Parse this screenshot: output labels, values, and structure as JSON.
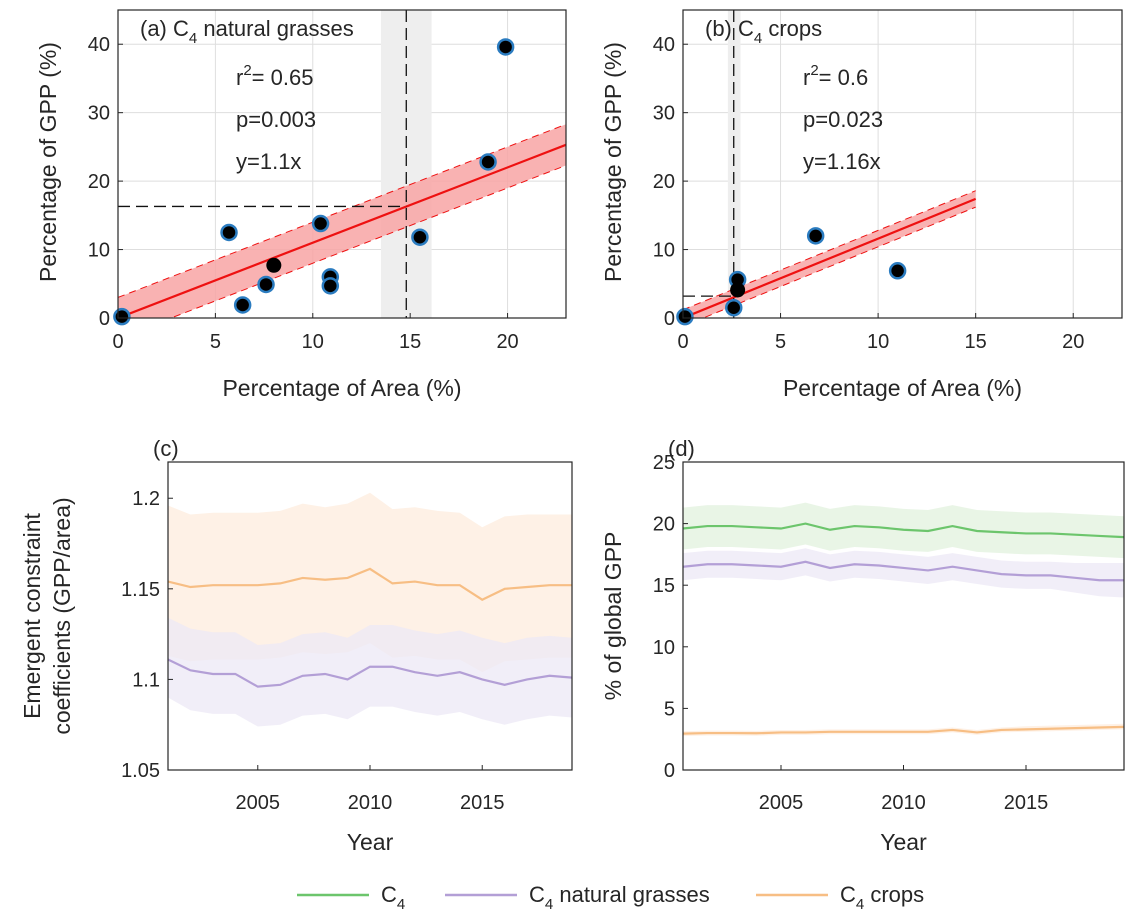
{
  "colors": {
    "fit_line": "#ee1111",
    "fit_band": "#f8a5a5",
    "marker_edge": "#2b7cc0",
    "marker_fill": "#000000",
    "grid": "#dedede",
    "axis": "#262626",
    "c4": "#6cc56c",
    "c4_band": "#e1f2de",
    "c4_grasses": "#b39fd6",
    "c4_grasses_band": "#ece8f5",
    "c4_crops": "#f7be84",
    "c4_crops_band": "#fdecdd",
    "vband": "#eeeeee"
  },
  "legend": {
    "placement": "bottom-center",
    "entries": [
      {
        "key": "c4",
        "main": "C",
        "sub": "4",
        "rest": ""
      },
      {
        "key": "c4_grasses",
        "main": "C",
        "sub": "4",
        "rest": " natural grasses"
      },
      {
        "key": "c4_crops",
        "main": "C",
        "sub": "4",
        "rest": " crops"
      }
    ]
  },
  "chart_data": [
    {
      "id": "a",
      "type": "scatter",
      "title_prefix": "(a) C",
      "title_sub": "4",
      "title_suffix": " natural grasses",
      "xlabel": "Percentage of Area (%)",
      "ylabel": "Percentage of GPP (%)",
      "xlim": [
        0,
        23
      ],
      "ylim": [
        0,
        45
      ],
      "xticks": [
        0,
        5,
        10,
        15,
        20
      ],
      "yticks": [
        0,
        10,
        20,
        30,
        40
      ],
      "grid": true,
      "annotation": {
        "r2_main": "r",
        "r2_sup": "2",
        "r2_value": "= 0.65",
        "p": "p=0.003",
        "eq": "y=1.1x"
      },
      "points": [
        {
          "x": 0.2,
          "y": 0.2,
          "edge": true
        },
        {
          "x": 5.7,
          "y": 12.5,
          "edge": true
        },
        {
          "x": 6.4,
          "y": 1.9,
          "edge": true
        },
        {
          "x": 7.6,
          "y": 4.9,
          "edge": true
        },
        {
          "x": 8.0,
          "y": 7.7,
          "edge": false
        },
        {
          "x": 10.4,
          "y": 13.8,
          "edge": true
        },
        {
          "x": 10.9,
          "y": 6.0,
          "edge": true
        },
        {
          "x": 10.9,
          "y": 4.7,
          "edge": true
        },
        {
          "x": 15.5,
          "y": 11.8,
          "edge": true
        },
        {
          "x": 19.0,
          "y": 22.8,
          "edge": true
        },
        {
          "x": 19.9,
          "y": 39.6,
          "edge": true
        }
      ],
      "fit": {
        "slope": 1.1,
        "x_range": [
          0,
          23
        ],
        "band_halfwidth": 3.0
      },
      "vline": {
        "x": 14.8,
        "band": [
          13.5,
          16.1
        ]
      },
      "hline": {
        "y": 16.3
      }
    },
    {
      "id": "b",
      "type": "scatter",
      "title_prefix": "(b) C",
      "title_sub": "4",
      "title_suffix": " crops",
      "xlabel": "Percentage of Area (%)",
      "ylabel": "Percentage of GPP (%)",
      "xlim": [
        0,
        22.5
      ],
      "ylim": [
        0,
        45
      ],
      "xticks": [
        0,
        5,
        10,
        15,
        20
      ],
      "yticks": [
        0,
        10,
        20,
        30,
        40
      ],
      "grid": true,
      "annotation": {
        "r2_main": "r",
        "r2_sup": "2",
        "r2_value": "= 0.6",
        "p": "p=0.023",
        "eq": "y=1.16x"
      },
      "points": [
        {
          "x": 0.1,
          "y": 0.2,
          "edge": true
        },
        {
          "x": 2.6,
          "y": 1.5,
          "edge": true
        },
        {
          "x": 2.8,
          "y": 5.6,
          "edge": true
        },
        {
          "x": 2.8,
          "y": 4.1,
          "edge": false
        },
        {
          "x": 6.8,
          "y": 12.0,
          "edge": true
        },
        {
          "x": 11.0,
          "y": 6.9,
          "edge": true
        }
      ],
      "fit": {
        "slope": 1.16,
        "x_range": [
          0,
          15
        ],
        "band_halfwidth": 1.2
      },
      "vline": {
        "x": 2.6,
        "band": [
          2.3,
          2.95
        ]
      },
      "hline": {
        "y": 3.2
      }
    },
    {
      "id": "c",
      "type": "line",
      "title": "(c)",
      "xlabel": "Year",
      "ylabel_lines": [
        "Emergent constraint",
        "coefficients (GPP/area)"
      ],
      "xlim": [
        2001,
        2019
      ],
      "ylim": [
        1.05,
        1.22
      ],
      "xticks": [
        2005,
        2010,
        2015
      ],
      "yticks": [
        1.05,
        1.1,
        1.15,
        1.2
      ],
      "ytick_labels": [
        "1.05",
        "1.1",
        "1.15",
        "1.2"
      ],
      "grid": false,
      "x": [
        2001,
        2002,
        2003,
        2004,
        2005,
        2006,
        2007,
        2008,
        2009,
        2010,
        2011,
        2012,
        2013,
        2014,
        2015,
        2016,
        2017,
        2018,
        2019
      ],
      "series": [
        {
          "key": "c4_crops",
          "values": [
            1.154,
            1.151,
            1.152,
            1.152,
            1.152,
            1.153,
            1.156,
            1.155,
            1.156,
            1.161,
            1.153,
            1.154,
            1.152,
            1.152,
            1.144,
            1.15,
            1.151,
            1.152,
            1.152
          ],
          "upper": [
            1.196,
            1.191,
            1.192,
            1.192,
            1.192,
            1.193,
            1.197,
            1.195,
            1.197,
            1.203,
            1.194,
            1.195,
            1.193,
            1.192,
            1.184,
            1.19,
            1.191,
            1.191,
            1.191
          ],
          "lower": [
            1.113,
            1.11,
            1.111,
            1.111,
            1.111,
            1.112,
            1.115,
            1.114,
            1.115,
            1.12,
            1.112,
            1.113,
            1.111,
            1.111,
            1.104,
            1.11,
            1.111,
            1.112,
            1.112
          ]
        },
        {
          "key": "c4_grasses",
          "values": [
            1.111,
            1.105,
            1.103,
            1.103,
            1.096,
            1.097,
            1.102,
            1.103,
            1.1,
            1.107,
            1.107,
            1.104,
            1.102,
            1.104,
            1.1,
            1.097,
            1.1,
            1.102,
            1.101
          ],
          "upper": [
            1.134,
            1.128,
            1.126,
            1.126,
            1.119,
            1.12,
            1.125,
            1.126,
            1.123,
            1.13,
            1.13,
            1.127,
            1.125,
            1.127,
            1.123,
            1.12,
            1.123,
            1.124,
            1.123
          ],
          "lower": [
            1.09,
            1.083,
            1.081,
            1.081,
            1.074,
            1.075,
            1.08,
            1.081,
            1.078,
            1.085,
            1.085,
            1.082,
            1.08,
            1.082,
            1.078,
            1.075,
            1.078,
            1.08,
            1.079
          ]
        }
      ]
    },
    {
      "id": "d",
      "type": "line",
      "title": "(d)",
      "xlabel": "Year",
      "ylabel": "% of global GPP",
      "xlim": [
        2001,
        2019
      ],
      "ylim": [
        0,
        25
      ],
      "xticks": [
        2005,
        2010,
        2015
      ],
      "yticks": [
        0,
        5,
        10,
        15,
        20,
        25
      ],
      "ytick_labels": [
        "0",
        "5",
        "10",
        "15",
        "20",
        "25"
      ],
      "grid": false,
      "x": [
        2001,
        2002,
        2003,
        2004,
        2005,
        2006,
        2007,
        2008,
        2009,
        2010,
        2011,
        2012,
        2013,
        2014,
        2015,
        2016,
        2017,
        2018,
        2019
      ],
      "series": [
        {
          "key": "c4",
          "values": [
            19.6,
            19.8,
            19.8,
            19.7,
            19.6,
            20.0,
            19.5,
            19.8,
            19.7,
            19.5,
            19.4,
            19.8,
            19.4,
            19.3,
            19.2,
            19.2,
            19.1,
            19.0,
            18.9
          ],
          "upper": [
            21.3,
            21.5,
            21.5,
            21.4,
            21.3,
            21.7,
            21.2,
            21.5,
            21.4,
            21.2,
            21.1,
            21.5,
            21.1,
            21.0,
            20.9,
            20.9,
            20.8,
            20.7,
            20.6
          ],
          "lower": [
            17.9,
            18.1,
            18.1,
            18.0,
            17.9,
            18.3,
            17.8,
            18.1,
            18.0,
            17.8,
            17.7,
            18.1,
            17.7,
            17.6,
            17.5,
            17.5,
            17.4,
            17.3,
            17.2
          ]
        },
        {
          "key": "c4_grasses",
          "values": [
            16.5,
            16.7,
            16.7,
            16.6,
            16.5,
            16.9,
            16.4,
            16.7,
            16.6,
            16.4,
            16.2,
            16.5,
            16.2,
            15.9,
            15.8,
            15.8,
            15.6,
            15.4,
            15.4
          ],
          "upper": [
            17.6,
            17.8,
            17.8,
            17.7,
            17.6,
            18.0,
            17.5,
            17.8,
            17.7,
            17.5,
            17.3,
            17.6,
            17.3,
            17.0,
            16.9,
            16.9,
            16.8,
            16.8,
            16.8
          ],
          "lower": [
            15.4,
            15.6,
            15.6,
            15.5,
            15.4,
            15.8,
            15.3,
            15.6,
            15.5,
            15.3,
            15.1,
            15.4,
            15.1,
            14.8,
            14.7,
            14.7,
            14.4,
            14.1,
            14.0
          ]
        },
        {
          "key": "c4_crops",
          "values": [
            2.95,
            3.0,
            3.0,
            2.98,
            3.05,
            3.05,
            3.1,
            3.1,
            3.1,
            3.1,
            3.1,
            3.25,
            3.05,
            3.25,
            3.3,
            3.35,
            3.4,
            3.45,
            3.5
          ],
          "upper": [
            3.15,
            3.2,
            3.2,
            3.18,
            3.25,
            3.25,
            3.3,
            3.3,
            3.3,
            3.3,
            3.3,
            3.45,
            3.25,
            3.45,
            3.55,
            3.6,
            3.65,
            3.7,
            3.75
          ],
          "lower": [
            2.75,
            2.8,
            2.8,
            2.78,
            2.85,
            2.85,
            2.9,
            2.9,
            2.9,
            2.9,
            2.9,
            3.05,
            2.85,
            3.05,
            3.1,
            3.15,
            3.2,
            3.25,
            3.3
          ]
        }
      ]
    }
  ]
}
